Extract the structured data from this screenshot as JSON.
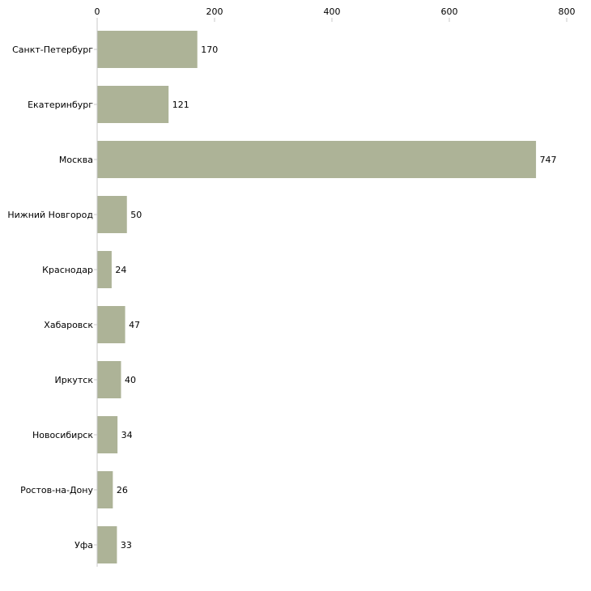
{
  "chart_data": {
    "type": "bar",
    "orientation": "horizontal",
    "title": "",
    "xlabel": "",
    "ylabel": "",
    "xlim": [
      0,
      800
    ],
    "x_ticks": [
      0,
      200,
      400,
      600,
      800
    ],
    "x_tick_labels": [
      "0",
      "200",
      "400",
      "600",
      "800"
    ],
    "grid": false,
    "legend": "none",
    "categories": [
      "Санкт-Петербург",
      "Екатеринбург",
      "Москва",
      "Нижний Новгород",
      "Краснодар",
      "Хабаровск",
      "Иркутск",
      "Новосибирск",
      "Ростов-на-Дону",
      "Уфа"
    ],
    "values": [
      170,
      121,
      747,
      50,
      24,
      47,
      40,
      34,
      26,
      33
    ],
    "value_labels": [
      "170",
      "121",
      "747",
      "50",
      "24",
      "47",
      "40",
      "34",
      "26",
      "33"
    ],
    "colors": {
      "bar": "#adb397",
      "axis": "#c8c8c8",
      "text": "#000000"
    }
  }
}
